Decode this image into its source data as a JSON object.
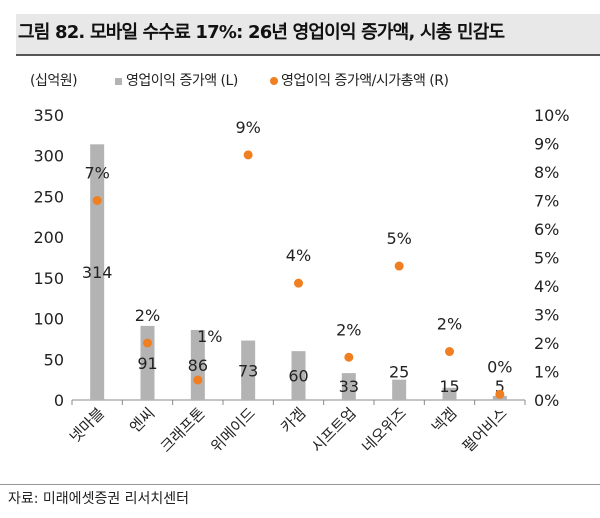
{
  "title": "그림 82. 모바일 수수료 17%: 26년 영업이익 증가액, 시총 민감도",
  "unit_label": "(십억원)",
  "source": "자료: 미래에셋증권 리서치센터",
  "chart_data": {
    "type": "bar+scatter",
    "title": "그림 82. 모바일 수수료 17%: 26년 영업이익 증가액, 시총 민감도",
    "categories": [
      "넷마블",
      "엔씨",
      "크래프톤",
      "위메이드",
      "카겜",
      "시프트업",
      "네오위즈",
      "넥겜",
      "펄어비스"
    ],
    "series": [
      {
        "name": "영업이익 증가액 (L)",
        "type": "bar",
        "axis": "left",
        "color": "#b3b3b3",
        "values": [
          314,
          91,
          86,
          73,
          60,
          33,
          25,
          15,
          5
        ],
        "labels": [
          "314",
          "91",
          "86",
          "73",
          "60",
          "33",
          "25",
          "15",
          "5"
        ]
      },
      {
        "name": "영업이익 증가액/시가총액 (R)",
        "type": "scatter",
        "axis": "right",
        "color": "#f07f22",
        "values": [
          7.0,
          2.0,
          0.7,
          8.6,
          4.1,
          1.5,
          4.7,
          1.7,
          0.2
        ],
        "labels": [
          "7%",
          "2%",
          "1%",
          "9%",
          "4%",
          "2%",
          "5%",
          "2%",
          "0%"
        ]
      }
    ],
    "left_axis": {
      "range": [
        0,
        350
      ],
      "ticks": [
        "0",
        "50",
        "100",
        "150",
        "200",
        "250",
        "300",
        "350"
      ]
    },
    "right_axis": {
      "range": [
        0,
        10
      ],
      "ticks": [
        "0%",
        "1%",
        "2%",
        "3%",
        "4%",
        "5%",
        "6%",
        "7%",
        "8%",
        "9%",
        "10%"
      ]
    },
    "grid": false,
    "legend": "top"
  }
}
